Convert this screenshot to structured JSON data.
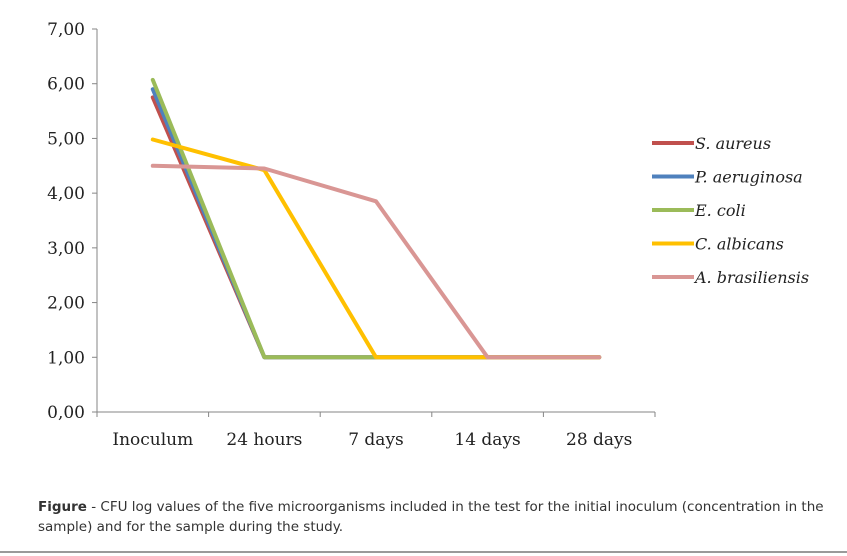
{
  "chart_data": {
    "type": "line",
    "categories": [
      "Inoculum",
      "24 hours",
      "7 days",
      "14 days",
      "28 days"
    ],
    "ylim": [
      0,
      7
    ],
    "yticks": [
      "0,00",
      "1,00",
      "2,00",
      "3,00",
      "4,00",
      "5,00",
      "6,00",
      "7,00"
    ],
    "grid": false,
    "legend_position": "right",
    "series": [
      {
        "name": "S. aureus",
        "color": "#c0504d",
        "values": [
          5.75,
          1,
          1,
          1,
          1
        ]
      },
      {
        "name": "P. aeruginosa",
        "color": "#4f81bd",
        "values": [
          5.9,
          1,
          1,
          1,
          1
        ]
      },
      {
        "name": "E. coli",
        "color": "#9bbb59",
        "values": [
          6.07,
          1,
          1,
          1,
          1
        ]
      },
      {
        "name": "C. albicans",
        "color": "#ffc000",
        "values": [
          4.98,
          4.42,
          1,
          1,
          1
        ]
      },
      {
        "name": "A. brasiliensis",
        "color": "#d99694",
        "values": [
          4.5,
          4.45,
          3.85,
          1,
          1
        ]
      }
    ]
  },
  "caption": {
    "label": "Figure",
    "text": " - CFU log values of the five microorganisms included in the test for the initial inoculum (concentration in the sample) and for the sample during the study."
  }
}
